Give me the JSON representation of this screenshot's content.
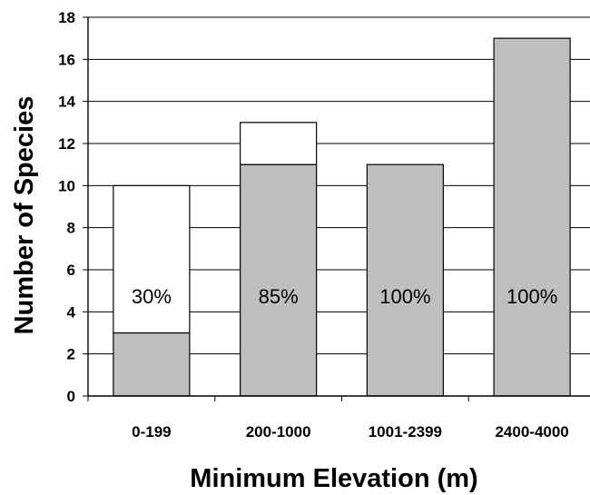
{
  "chart_data": {
    "type": "bar",
    "stacked": true,
    "title": "",
    "xlabel": "Minimum Elevation (m)",
    "ylabel": "Number of Species",
    "ylim": [
      0,
      18
    ],
    "yticks": [
      "0",
      "2",
      "4",
      "6",
      "8",
      "10",
      "12",
      "14",
      "16",
      "18"
    ],
    "grid": true,
    "categories": [
      "0-199",
      "200-1000",
      "1001-2399",
      "2400-4000"
    ],
    "series": [
      {
        "values": [
          3,
          11,
          11,
          17
        ],
        "color": "#bfbfbf"
      },
      {
        "values": [
          7,
          2,
          0,
          0
        ],
        "color": "#ffffff"
      }
    ],
    "totals": [
      10,
      13,
      11,
      17
    ],
    "annotations": [
      "30%",
      "85%",
      "100%",
      "100%"
    ]
  }
}
